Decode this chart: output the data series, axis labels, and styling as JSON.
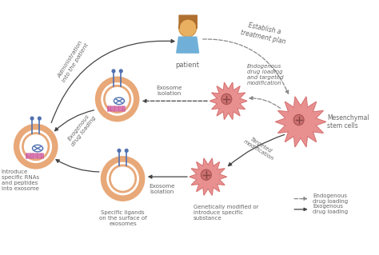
{
  "bg_color": "#ffffff",
  "exosome_outer_color": "#e8a878",
  "exosome_ring_color": "#e8a878",
  "exosome_fill": "#ffffff",
  "stem_cell_color": "#e89090",
  "stem_cell_edge": "#d07070",
  "text_color": "#666666",
  "arrow_solid_color": "#444444",
  "arrow_dashed_color": "#888888",
  "spike_color": "#5070b0",
  "rna_color": "#b05080",
  "bar_color": "#d060a0",
  "figsize": [
    4.74,
    3.19
  ],
  "dpi": 100,
  "labels": {
    "patient": "patient",
    "establish": "Establish a\ntreatment plan",
    "admin": "Administration\ninto the patient",
    "exosome_isolation_top": "Exosome\nisolation",
    "exosome_isolation_bot": "Exosome\nisolation",
    "endogenous": "Endogenous\ndrug loading\nand targeted\nmodification",
    "targeted": "Targeted\nmodification",
    "mesenchymal": "Mesenchymal\nstem cells",
    "exogenous_loading": "Exogenous\ndrug loading",
    "introduce": "Introduce\nspecific RNAs\nand peptides\ninto exosome",
    "specific_ligands": "Specific ligands\non the surface of\nexosomes",
    "genetically": "Genetically modified or\nintroduce specific\nsubstance",
    "legend_endo": "Endogenous\ndrug loading",
    "legend_exo": "Exogenous\ndrug loading"
  }
}
